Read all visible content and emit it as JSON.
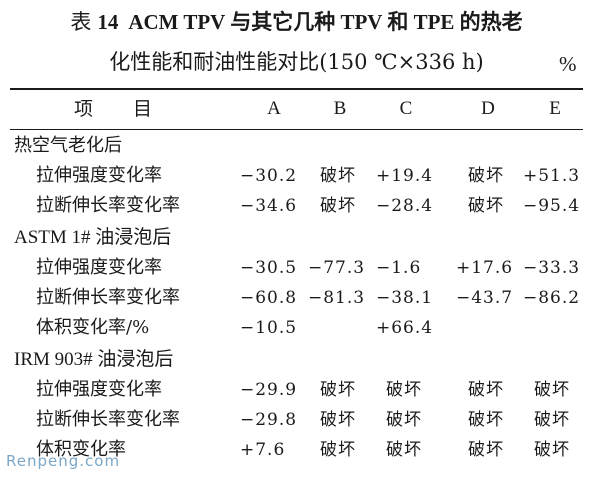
{
  "title": {
    "label": "表",
    "number": "14",
    "line1": "ACM TPV 与其它几种 TPV 和 TPE 的热老",
    "line2": "化性能和耐油性能对比(150 ℃×336 h)",
    "unit": "%"
  },
  "header": {
    "item": "项目",
    "columns": [
      "A",
      "B",
      "C",
      "D",
      "E"
    ]
  },
  "groups": [
    {
      "label": "热空气老化后",
      "rows": [
        {
          "label": "拉伸强度变化率",
          "values": [
            "−30.2",
            "破坏",
            "+19.4",
            "破坏",
            "+51.3"
          ]
        },
        {
          "label": "拉断伸长率变化率",
          "values": [
            "−34.6",
            "破坏",
            "−28.4",
            "破坏",
            "−95.4"
          ]
        }
      ]
    },
    {
      "label": "ASTM 1# 油浸泡后",
      "rows": [
        {
          "label": "拉伸强度变化率",
          "values": [
            "−30.5",
            "−77.3",
            "−1.6",
            "+17.6",
            "−33.3"
          ]
        },
        {
          "label": "拉断伸长率变化率",
          "values": [
            "−60.8",
            "−81.3",
            "−38.1",
            "−43.7",
            "−86.2"
          ]
        },
        {
          "label": "体积变化率/%",
          "values": [
            "−10.5",
            "",
            "+66.4",
            "",
            ""
          ]
        }
      ]
    },
    {
      "label": "IRM 903# 油浸泡后",
      "rows": [
        {
          "label": "拉伸强度变化率",
          "values": [
            "−29.9",
            "破坏",
            "破坏",
            "破坏",
            "破坏"
          ]
        },
        {
          "label": "拉断伸长率变化率",
          "values": [
            "−29.8",
            "破坏",
            "破坏",
            "破坏",
            "破坏"
          ]
        },
        {
          "label": "体积变化率",
          "values": [
            "+7.6",
            "破坏",
            "破坏",
            "破坏",
            "破坏"
          ]
        }
      ]
    }
  ],
  "watermark": "Renpeng.com"
}
